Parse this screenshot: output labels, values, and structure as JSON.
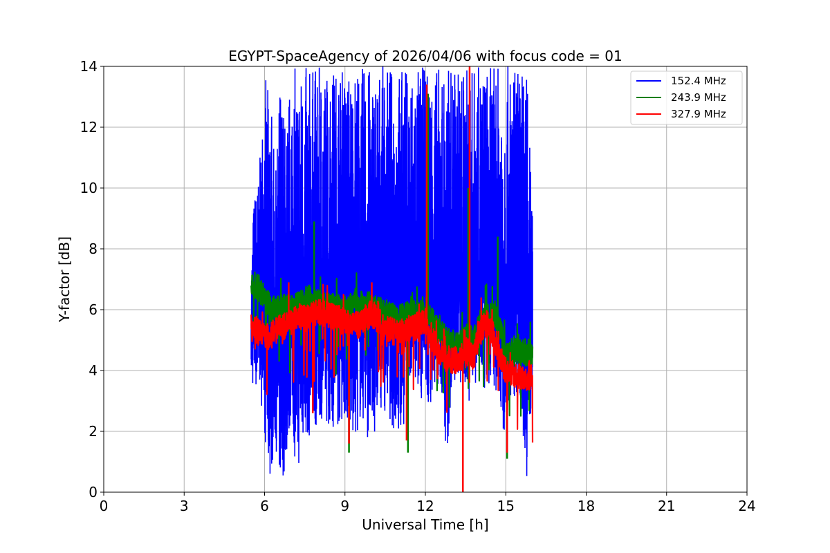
{
  "chart_data": {
    "type": "line",
    "title": "EGYPT-SpaceAgency of 2026/04/06 with focus code = 01",
    "xlabel": "Universal Time [h]",
    "ylabel": "Y-factor [dB]",
    "xlim": [
      0,
      24
    ],
    "ylim": [
      0,
      14
    ],
    "xticks": [
      0,
      3,
      6,
      9,
      12,
      15,
      18,
      21,
      24
    ],
    "yticks": [
      0,
      2,
      4,
      6,
      8,
      10,
      12,
      14
    ],
    "grid": true,
    "legend_position": "top-right",
    "series": [
      {
        "name": "152.4 MHz",
        "color": "#0000ff",
        "x": [
          5.5,
          5.6,
          5.8,
          6.0,
          6.1,
          6.2,
          6.4,
          6.6,
          6.8,
          7.0,
          7.2,
          7.4,
          7.6,
          7.8,
          8.0,
          8.3,
          8.6,
          9.0,
          9.3,
          9.6,
          10.0,
          10.3,
          10.6,
          11.0,
          11.3,
          11.6,
          12.0,
          12.1,
          12.3,
          12.6,
          12.8,
          13.0,
          13.3,
          13.5,
          13.6,
          13.8,
          14.0,
          14.3,
          14.5,
          14.7,
          15.0,
          15.2,
          15.5,
          15.8,
          16.0
        ],
        "low": [
          3.8,
          3.2,
          3.6,
          1.9,
          0.4,
          0.4,
          1.6,
          0.0,
          0.9,
          2.5,
          0.3,
          1.6,
          1.8,
          1.6,
          2.5,
          2.3,
          1.9,
          2.5,
          1.4,
          2.4,
          1.4,
          2.8,
          2.6,
          1.4,
          2.6,
          3.2,
          3.0,
          2.5,
          3.4,
          3.4,
          0.6,
          3.6,
          3.4,
          2.9,
          2.9,
          3.5,
          3.4,
          3.0,
          3.4,
          3.3,
          1.2,
          3.0,
          3.4,
          0.3,
          3.6
        ],
        "high": [
          7.6,
          9.8,
          10.5,
          14.0,
          13.2,
          14.0,
          10.2,
          14.0,
          12.0,
          14.0,
          14.0,
          14.0,
          14.0,
          14.0,
          14.0,
          14.0,
          14.0,
          14.0,
          14.0,
          14.0,
          14.0,
          14.0,
          14.0,
          14.0,
          14.0,
          14.0,
          14.0,
          14.0,
          14.0,
          14.0,
          14.0,
          14.0,
          14.0,
          14.0,
          14.0,
          14.0,
          14.0,
          14.0,
          14.0,
          14.0,
          14.0,
          14.0,
          14.0,
          14.0,
          9.0
        ]
      },
      {
        "name": "243.9 MHz",
        "color": "#008000",
        "x": [
          5.5,
          5.8,
          6.0,
          6.3,
          6.6,
          7.0,
          7.3,
          7.6,
          7.8,
          8.0,
          8.5,
          9.0,
          9.5,
          10.0,
          10.5,
          11.0,
          11.5,
          12.0,
          12.1,
          12.5,
          12.8,
          13.0,
          13.3,
          13.6,
          13.8,
          14.0,
          14.3,
          14.6,
          14.7,
          15.0,
          15.3,
          15.6,
          16.0
        ],
        "y": [
          6.9,
          6.7,
          6.4,
          6.0,
          6.1,
          6.0,
          6.2,
          6.4,
          6.3,
          6.2,
          6.1,
          6.0,
          6.2,
          6.1,
          5.9,
          5.7,
          5.9,
          6.0,
          5.8,
          5.4,
          5.0,
          4.9,
          4.8,
          5.2,
          5.0,
          5.5,
          5.8,
          5.9,
          5.6,
          4.6,
          4.6,
          4.6,
          4.6
        ],
        "spikes": [
          {
            "x": 7.85,
            "y": 8.9
          },
          {
            "x": 12.1,
            "y": 13.1
          },
          {
            "x": 13.6,
            "y": 10.0
          },
          {
            "x": 14.7,
            "y": 8.4
          },
          {
            "x": 9.15,
            "y": 1.3
          },
          {
            "x": 11.35,
            "y": 1.3
          },
          {
            "x": 15.05,
            "y": 1.1
          }
        ]
      },
      {
        "name": "327.9 MHz",
        "color": "#ff0000",
        "x": [
          5.5,
          5.8,
          6.0,
          6.3,
          6.6,
          7.0,
          7.3,
          7.6,
          8.0,
          8.5,
          9.0,
          9.5,
          10.0,
          10.5,
          11.0,
          11.5,
          12.0,
          12.5,
          12.8,
          13.0,
          13.3,
          13.6,
          13.8,
          14.0,
          14.3,
          14.6,
          14.8,
          15.0,
          15.3,
          15.6,
          16.0
        ],
        "y": [
          5.4,
          5.3,
          5.1,
          5.2,
          5.4,
          5.6,
          5.8,
          5.7,
          5.9,
          5.8,
          5.6,
          5.5,
          5.9,
          5.4,
          5.2,
          5.4,
          5.6,
          4.6,
          4.4,
          4.3,
          4.4,
          4.6,
          4.4,
          5.2,
          5.6,
          5.0,
          4.4,
          4.0,
          3.9,
          3.8,
          3.8
        ],
        "spikes": [
          {
            "x": 12.05,
            "y": 13.4
          },
          {
            "x": 13.65,
            "y": 14.0
          },
          {
            "x": 13.4,
            "y": 0.0
          },
          {
            "x": 6.9,
            "y": 6.9
          },
          {
            "x": 10.0,
            "y": 6.9
          },
          {
            "x": 9.15,
            "y": 1.6
          },
          {
            "x": 11.3,
            "y": 1.7
          },
          {
            "x": 15.05,
            "y": 1.3
          },
          {
            "x": 7.8,
            "y": 2.6
          }
        ]
      }
    ]
  }
}
